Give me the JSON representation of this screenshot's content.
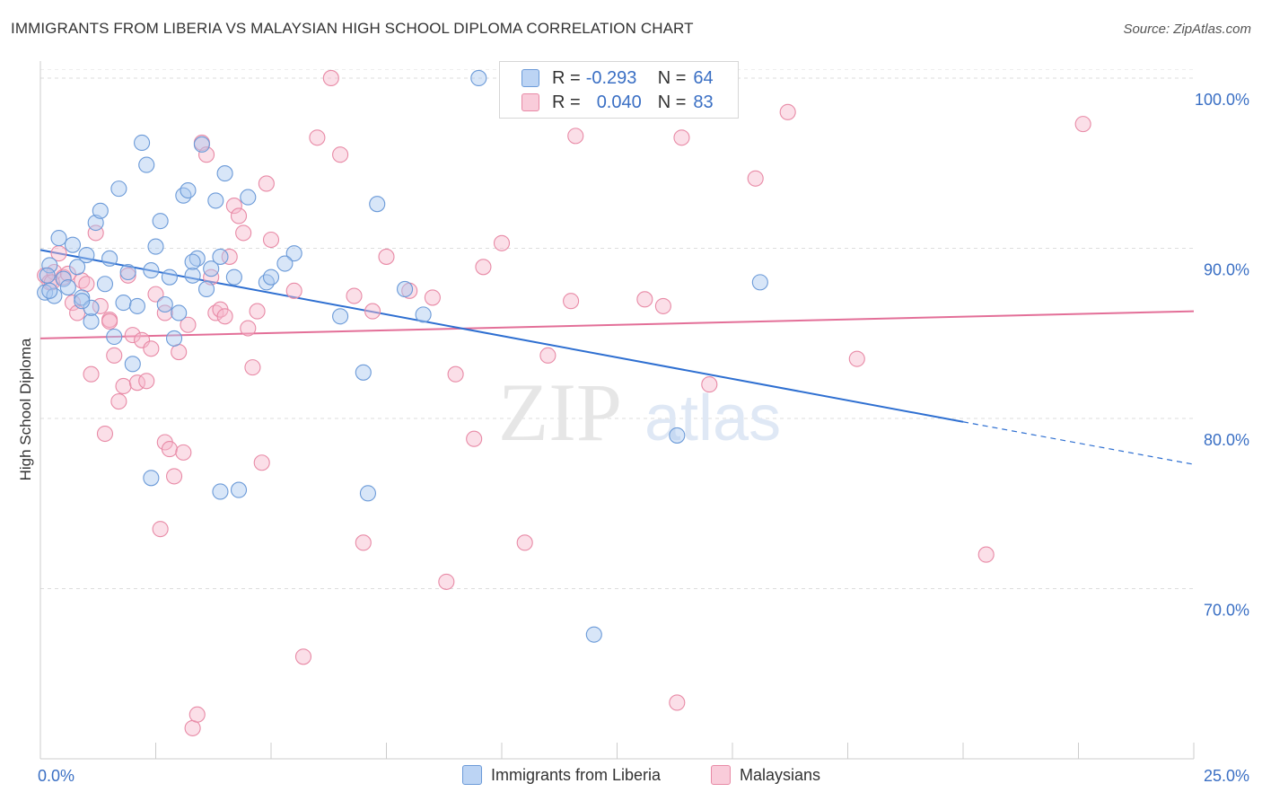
{
  "header": {
    "title": "IMMIGRANTS FROM LIBERIA VS MALAYSIAN HIGH SCHOOL DIPLOMA CORRELATION CHART",
    "source": "Source: ZipAtlas.com"
  },
  "watermark": {
    "zip": "ZIP",
    "atlas": "atlas"
  },
  "legend": {
    "rows": [
      {
        "r_label": "R =",
        "r_value": "-0.293",
        "n_label": "N =",
        "n_value": "64",
        "color": "#a9c8f0"
      },
      {
        "r_label": "R =",
        "r_value": "0.040",
        "n_label": "N =",
        "n_value": "83",
        "color": "#f6b8cb"
      }
    ]
  },
  "bottom_legend": {
    "series1": "Immigrants from Liberia",
    "series2": "Malaysians"
  },
  "colors": {
    "blue_fill": "#a9c8f0",
    "blue_stroke": "#6b9ad8",
    "blue_line": "#2e6fd1",
    "pink_fill": "#f6b8cb",
    "pink_stroke": "#e88aa6",
    "pink_line": "#e36f98",
    "axis_text": "#3a6fc4",
    "grid": "#dddddd"
  },
  "chart_data": {
    "type": "scatter",
    "title": "IMMIGRANTS FROM LIBERIA VS MALAYSIAN HIGH SCHOOL DIPLOMA CORRELATION CHART",
    "xlabel": "",
    "ylabel": "High School Diploma",
    "xlim": [
      0,
      25
    ],
    "ylim": [
      60,
      101
    ],
    "x_tick_labels": [
      "0.0%",
      "25.0%"
    ],
    "y_ticks": [
      70,
      80,
      90,
      100
    ],
    "y_tick_labels": [
      "70.0%",
      "80.0%",
      "90.0%",
      "100.0%"
    ],
    "grid": true,
    "legend_position": "top-center",
    "series": [
      {
        "name": "Immigrants from Liberia",
        "color": "#a9c8f0",
        "trend": {
          "x": [
            0,
            20
          ],
          "y": [
            89.9,
            79.8
          ],
          "dashed_to_x": 25,
          "dashed_to_y": 77.3
        },
        "points": [
          [
            0.1,
            87.4
          ],
          [
            0.2,
            89.0
          ],
          [
            0.3,
            87.2
          ],
          [
            0.4,
            90.6
          ],
          [
            0.5,
            88.2
          ],
          [
            0.6,
            87.7
          ],
          [
            0.7,
            90.2
          ],
          [
            0.8,
            88.9
          ],
          [
            0.9,
            87.1
          ],
          [
            1.0,
            89.6
          ],
          [
            1.1,
            85.7
          ],
          [
            1.2,
            91.5
          ],
          [
            1.3,
            92.2
          ],
          [
            1.4,
            87.9
          ],
          [
            1.5,
            89.4
          ],
          [
            1.6,
            84.8
          ],
          [
            1.7,
            93.5
          ],
          [
            1.8,
            86.8
          ],
          [
            1.9,
            88.6
          ],
          [
            2.0,
            83.2
          ],
          [
            2.1,
            86.6
          ],
          [
            2.2,
            96.2
          ],
          [
            2.3,
            94.9
          ],
          [
            2.4,
            88.7
          ],
          [
            2.5,
            90.1
          ],
          [
            2.6,
            91.6
          ],
          [
            2.7,
            86.7
          ],
          [
            2.8,
            88.3
          ],
          [
            2.9,
            84.7
          ],
          [
            3.0,
            86.2
          ],
          [
            3.1,
            93.1
          ],
          [
            3.2,
            93.4
          ],
          [
            3.3,
            88.4
          ],
          [
            3.4,
            89.4
          ],
          [
            3.5,
            96.1
          ],
          [
            3.6,
            87.6
          ],
          [
            3.7,
            88.8
          ],
          [
            3.8,
            92.8
          ],
          [
            3.9,
            89.5
          ],
          [
            4.0,
            94.4
          ],
          [
            4.2,
            88.3
          ],
          [
            4.5,
            93.0
          ],
          [
            4.9,
            88.0
          ],
          [
            5.0,
            88.3
          ],
          [
            5.5,
            89.7
          ],
          [
            5.3,
            89.1
          ],
          [
            6.5,
            86.0
          ],
          [
            7.0,
            82.7
          ],
          [
            7.3,
            92.6
          ],
          [
            7.9,
            87.6
          ],
          [
            8.3,
            86.1
          ],
          [
            9.5,
            100.0
          ],
          [
            12.0,
            67.3
          ],
          [
            13.8,
            79.0
          ],
          [
            15.6,
            88.0
          ],
          [
            2.4,
            76.5
          ],
          [
            3.9,
            75.7
          ],
          [
            4.3,
            75.8
          ],
          [
            7.1,
            75.6
          ],
          [
            0.2,
            87.5
          ],
          [
            0.15,
            88.4
          ],
          [
            3.3,
            89.2
          ],
          [
            1.1,
            86.5
          ],
          [
            0.9,
            86.9
          ]
        ]
      },
      {
        "name": "Malaysians",
        "color": "#f6b8cb",
        "trend": {
          "x": [
            0,
            25
          ],
          "y": [
            84.7,
            86.3
          ]
        },
        "points": [
          [
            0.1,
            88.4
          ],
          [
            0.2,
            88.0
          ],
          [
            0.3,
            88.6
          ],
          [
            0.4,
            89.7
          ],
          [
            0.5,
            88.3
          ],
          [
            0.6,
            88.5
          ],
          [
            0.7,
            86.8
          ],
          [
            0.8,
            86.2
          ],
          [
            0.9,
            88.1
          ],
          [
            1.0,
            87.9
          ],
          [
            1.1,
            82.6
          ],
          [
            1.2,
            90.9
          ],
          [
            1.3,
            86.6
          ],
          [
            1.4,
            79.1
          ],
          [
            1.5,
            85.8
          ],
          [
            1.6,
            83.7
          ],
          [
            1.7,
            81.0
          ],
          [
            1.8,
            81.9
          ],
          [
            1.9,
            88.4
          ],
          [
            2.0,
            84.9
          ],
          [
            2.1,
            82.1
          ],
          [
            2.2,
            84.6
          ],
          [
            2.3,
            82.2
          ],
          [
            2.4,
            84.1
          ],
          [
            2.5,
            87.3
          ],
          [
            2.6,
            73.5
          ],
          [
            2.7,
            78.6
          ],
          [
            2.8,
            78.2
          ],
          [
            2.9,
            76.6
          ],
          [
            3.0,
            83.9
          ],
          [
            3.1,
            78.0
          ],
          [
            3.2,
            85.5
          ],
          [
            3.3,
            61.8
          ],
          [
            3.4,
            62.6
          ],
          [
            3.5,
            96.2
          ],
          [
            3.6,
            95.5
          ],
          [
            3.7,
            88.3
          ],
          [
            3.8,
            86.2
          ],
          [
            3.9,
            86.4
          ],
          [
            4.0,
            86.0
          ],
          [
            4.1,
            89.5
          ],
          [
            4.2,
            92.5
          ],
          [
            4.3,
            91.9
          ],
          [
            4.4,
            90.9
          ],
          [
            4.5,
            85.3
          ],
          [
            4.6,
            83.0
          ],
          [
            4.7,
            86.3
          ],
          [
            4.8,
            77.4
          ],
          [
            4.9,
            93.8
          ],
          [
            5.0,
            90.5
          ],
          [
            5.5,
            87.5
          ],
          [
            5.7,
            66.0
          ],
          [
            6.0,
            96.5
          ],
          [
            6.3,
            100.0
          ],
          [
            6.5,
            95.5
          ],
          [
            6.8,
            87.2
          ],
          [
            7.0,
            72.7
          ],
          [
            7.2,
            86.3
          ],
          [
            7.5,
            89.5
          ],
          [
            8.0,
            87.5
          ],
          [
            8.5,
            87.1
          ],
          [
            8.8,
            70.4
          ],
          [
            9.0,
            82.6
          ],
          [
            9.4,
            78.8
          ],
          [
            9.6,
            88.9
          ],
          [
            10.0,
            90.3
          ],
          [
            10.5,
            72.7
          ],
          [
            11.0,
            83.7
          ],
          [
            11.5,
            86.9
          ],
          [
            11.6,
            96.6
          ],
          [
            13.1,
            87.0
          ],
          [
            13.5,
            86.6
          ],
          [
            13.8,
            63.3
          ],
          [
            13.9,
            96.5
          ],
          [
            14.5,
            82.0
          ],
          [
            15.5,
            94.1
          ],
          [
            16.2,
            98.0
          ],
          [
            17.7,
            83.5
          ],
          [
            20.5,
            72.0
          ],
          [
            22.6,
            97.3
          ],
          [
            1.5,
            85.7
          ],
          [
            2.7,
            86.2
          ],
          [
            0.25,
            88.0
          ]
        ]
      }
    ]
  }
}
